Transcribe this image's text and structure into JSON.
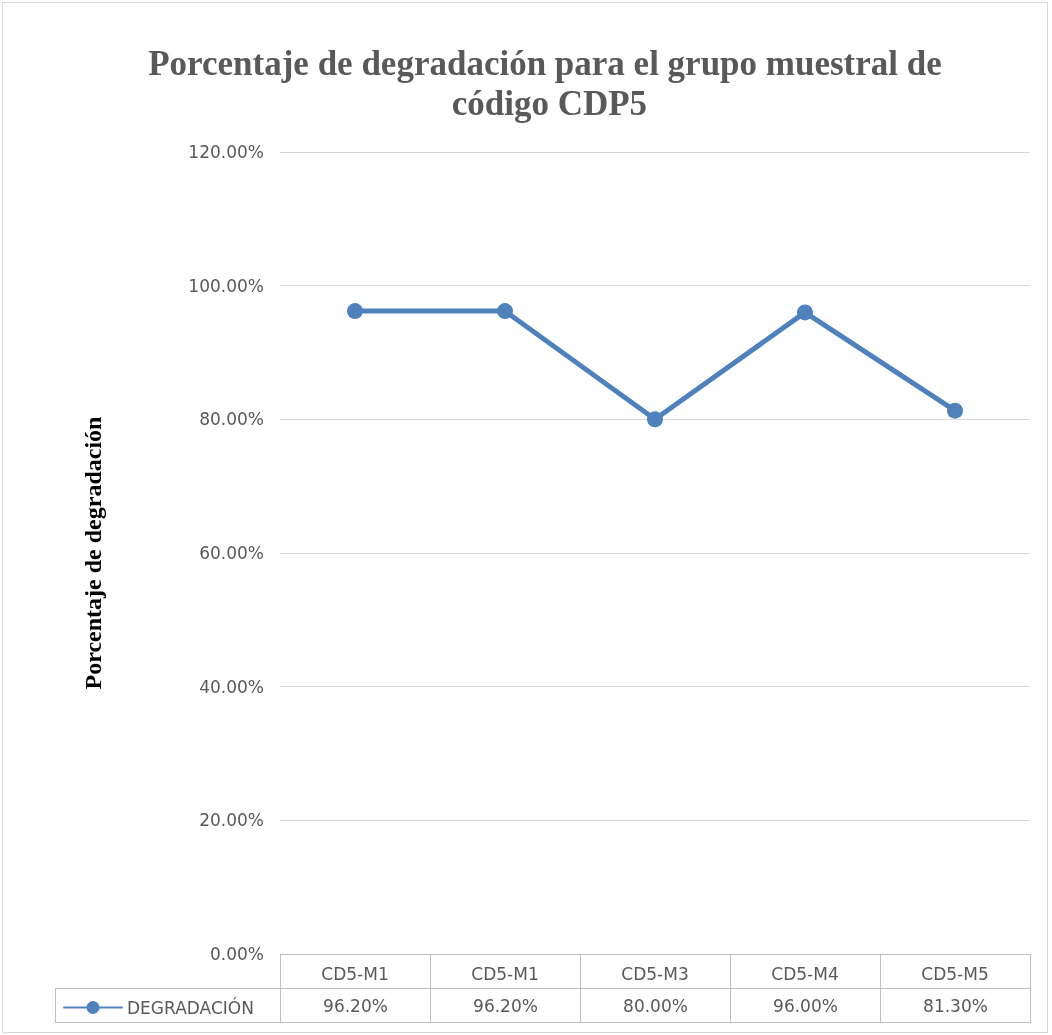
{
  "chart_data": {
    "type": "line",
    "title": "Porcentaje de degradación para el grupo muestral de código CDP5",
    "ylabel": "Porcentaje de degradación",
    "categories": [
      "CD5-M1",
      "CD5-M1",
      "CD5-M3",
      "CD5-M4",
      "CD5-M5"
    ],
    "series": [
      {
        "name": "DEGRADACIÓN",
        "color": "#4f81bd",
        "values": [
          96.2,
          96.2,
          80,
          96,
          81.3
        ],
        "value_labels": [
          "96.20%",
          "96.20%",
          "80.00%",
          "96.00%",
          "81.30%"
        ]
      }
    ],
    "ylim": [
      0,
      120
    ],
    "yticks": [
      {
        "value": 0,
        "label": "0.00%"
      },
      {
        "value": 20,
        "label": "20.00%"
      },
      {
        "value": 40,
        "label": "40.00%"
      },
      {
        "value": 60,
        "label": "60.00%"
      },
      {
        "value": 80,
        "label": "80.00%"
      },
      {
        "value": 100,
        "label": "100.00%"
      },
      {
        "value": 120,
        "label": "120.00%"
      }
    ],
    "grid": "y",
    "legend": "bottom left",
    "marker": "circle",
    "line_style": "solid"
  }
}
